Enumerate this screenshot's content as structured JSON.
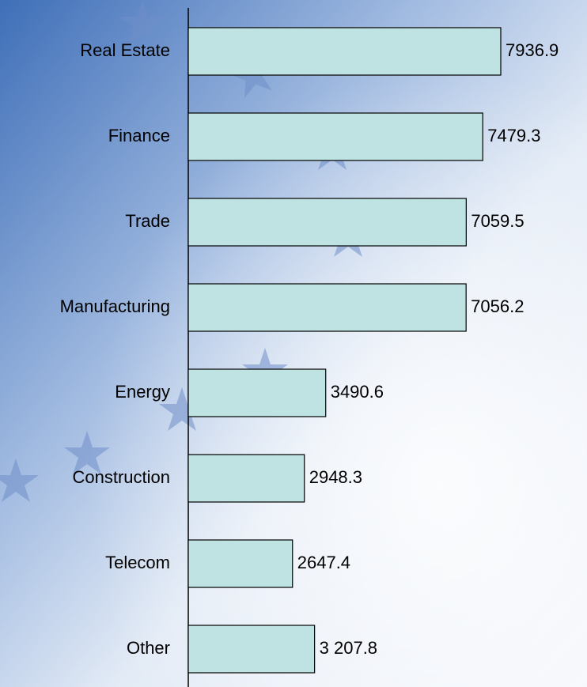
{
  "chart_data": {
    "type": "bar",
    "orientation": "horizontal",
    "categories": [
      "Real Estate",
      "Finance",
      "Trade",
      "Manufacturing",
      "Energy",
      "Construction",
      "Telecom",
      "Other"
    ],
    "values": [
      7936.9,
      7479.3,
      7059.5,
      7056.2,
      3490.6,
      2948.3,
      2647.4,
      3207.8
    ],
    "value_labels": [
      "7936.9",
      "7479.3",
      "7059.5",
      "7056.2",
      "3490.6",
      "2948.3",
      "2647.4",
      "3 207.8"
    ],
    "color": "#bfe3e3"
  }
}
